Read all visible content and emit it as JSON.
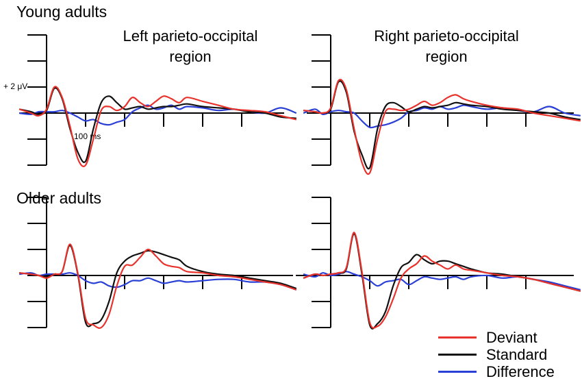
{
  "groups": {
    "young": "Young adults",
    "older": "Older adults"
  },
  "panel_titles": {
    "left": [
      "Left parieto-occipital",
      "region"
    ],
    "right": [
      "Right parieto-occipital",
      "region"
    ]
  },
  "scale": {
    "y_label": "+ 2 μV",
    "x_label": "100 ms"
  },
  "legend": [
    {
      "name": "Deviant",
      "color": "#e8322c"
    },
    {
      "name": "Standard",
      "color": "#111111"
    },
    {
      "name": "Difference",
      "color": "#2a3fd6"
    }
  ],
  "chart_data": [
    {
      "type": "line",
      "title": "Left parieto-occipital region",
      "group": "Young adults",
      "xlabel": "ms",
      "ylabel": "μV",
      "xlim": [
        -70,
        640
      ],
      "ylim": [
        -4,
        6
      ],
      "x": [
        -70,
        -40,
        -20,
        0,
        20,
        40,
        60,
        80,
        100,
        120,
        140,
        160,
        180,
        200,
        220,
        240,
        260,
        280,
        300,
        320,
        340,
        360,
        400,
        440,
        480,
        520,
        560,
        600,
        640
      ],
      "series": [
        {
          "name": "Deviant",
          "values": [
            0.3,
            0,
            -0.2,
            0.3,
            2,
            1.2,
            -1,
            -3.5,
            -4,
            -2,
            0.2,
            0.5,
            0.2,
            0.5,
            1.2,
            0.8,
            0.5,
            0.9,
            1.3,
            1.1,
            0.8,
            1.2,
            0.9,
            0.6,
            0.3,
            0.2,
            0.1,
            -0.2,
            -0.5
          ]
        },
        {
          "name": "Standard",
          "values": [
            0.3,
            0.1,
            -0.1,
            0.2,
            1.9,
            1.1,
            -1.2,
            -3,
            -3.7,
            -1.2,
            0.8,
            1.3,
            0.8,
            0.3,
            0.4,
            0.5,
            0.3,
            0.4,
            0.5,
            0.5,
            0.6,
            0.7,
            0.5,
            0.4,
            0.3,
            0.1,
            0,
            -0.3,
            -0.4
          ]
        },
        {
          "name": "Difference",
          "values": [
            0,
            -0.1,
            0.1,
            0.1,
            0.1,
            0.2,
            0,
            -0.3,
            -0.6,
            -0.5,
            -0.8,
            -0.9,
            -0.7,
            -0.5,
            0.1,
            0.4,
            0.6,
            0.3,
            0.4,
            0.6,
            0.3,
            0.5,
            0.4,
            0.2,
            0.3,
            0.1,
            0,
            0.4,
            0
          ]
        }
      ]
    },
    {
      "type": "line",
      "title": "Right parieto-occipital region",
      "group": "Young adults",
      "xlabel": "ms",
      "ylabel": "μV",
      "xlim": [
        -70,
        640
      ],
      "ylim": [
        -4,
        6
      ],
      "x": [
        -70,
        -40,
        -20,
        0,
        20,
        40,
        60,
        80,
        100,
        120,
        140,
        160,
        180,
        200,
        220,
        240,
        260,
        280,
        300,
        320,
        340,
        360,
        400,
        440,
        480,
        520,
        560,
        600,
        640
      ],
      "series": [
        {
          "name": "Deviant",
          "values": [
            0.2,
            0.1,
            0,
            0.4,
            2.5,
            1.8,
            -1.2,
            -3.8,
            -4.6,
            -2,
            0.1,
            0.3,
            0.2,
            0.3,
            0.6,
            0.9,
            0.6,
            0.8,
            1.2,
            1.4,
            1.1,
            0.9,
            0.6,
            0.4,
            0.3,
            0,
            -0.2,
            -0.4,
            -0.6
          ]
        },
        {
          "name": "Standard",
          "values": [
            0.2,
            0.1,
            0,
            0.3,
            2.4,
            1.6,
            -1.4,
            -3.2,
            -4.2,
            -1.2,
            0.5,
            0.8,
            0.5,
            0.1,
            0.3,
            0.5,
            0.4,
            0.5,
            0.6,
            0.8,
            0.7,
            0.6,
            0.5,
            0.3,
            0.2,
            0.1,
            0,
            -0.3,
            -0.5
          ]
        },
        {
          "name": "Difference",
          "values": [
            0,
            0.3,
            -0.1,
            0.1,
            0.2,
            0.1,
            0,
            -0.6,
            -1.1,
            -1,
            -0.9,
            -0.7,
            -0.4,
            0.1,
            0.2,
            0.4,
            0.3,
            0.5,
            0.3,
            0.4,
            0.6,
            0.5,
            0.3,
            0.4,
            0.2,
            0.1,
            0.5,
            0,
            -0.2
          ]
        }
      ]
    },
    {
      "type": "line",
      "title": "Left parieto-occipital region",
      "group": "Older adults",
      "xlabel": "ms",
      "ylabel": "μV",
      "xlim": [
        -70,
        640
      ],
      "ylim": [
        -4,
        6
      ],
      "x": [
        -70,
        -40,
        -20,
        0,
        20,
        40,
        60,
        80,
        100,
        120,
        140,
        160,
        180,
        200,
        220,
        240,
        260,
        280,
        300,
        320,
        340,
        360,
        400,
        440,
        480,
        520,
        560,
        600,
        640
      ],
      "series": [
        {
          "name": "Deviant",
          "values": [
            0.2,
            0.1,
            0,
            -0.2,
            0.1,
            0.3,
            2.4,
            0.2,
            -3.3,
            -3.8,
            -4,
            -3,
            -0.8,
            0.7,
            0.8,
            1.4,
            2,
            1.5,
            0.9,
            0.7,
            0.6,
            0.3,
            0.2,
            0,
            -0.1,
            -0.3,
            -0.5,
            -0.7,
            -1.1
          ]
        },
        {
          "name": "Standard",
          "values": [
            0.2,
            0.1,
            0,
            -0.1,
            0.1,
            0.3,
            2.3,
            0.1,
            -3.6,
            -3.7,
            -3.4,
            -2,
            0.2,
            1.1,
            1.5,
            1.7,
            1.9,
            1.8,
            1.6,
            1.4,
            1.2,
            0.7,
            0.3,
            0.1,
            0,
            -0.2,
            -0.4,
            -0.6,
            -1
          ]
        },
        {
          "name": "Difference",
          "values": [
            0.1,
            0.2,
            0,
            0.1,
            0.1,
            0.1,
            0.2,
            0,
            -0.4,
            -0.6,
            -0.5,
            -0.8,
            -0.9,
            -0.7,
            -0.4,
            -0.4,
            -0.2,
            -0.4,
            -0.6,
            -0.5,
            -0.4,
            -0.5,
            -0.4,
            -0.3,
            -0.3,
            -0.5,
            -0.5,
            -0.7,
            -1.1
          ]
        }
      ]
    },
    {
      "type": "line",
      "title": "Right parieto-occipital region",
      "group": "Older adults",
      "xlabel": "ms",
      "ylabel": "μV",
      "xlim": [
        -70,
        640
      ],
      "ylim": [
        -4,
        6
      ],
      "x": [
        -70,
        -40,
        -20,
        0,
        20,
        40,
        60,
        80,
        100,
        120,
        140,
        160,
        180,
        200,
        220,
        240,
        260,
        280,
        300,
        320,
        340,
        360,
        400,
        440,
        480,
        520,
        560,
        600,
        640
      ],
      "series": [
        {
          "name": "Deviant",
          "values": [
            -0.2,
            0.1,
            0,
            0.1,
            0.2,
            0.6,
            3.3,
            0.3,
            -3.6,
            -3.9,
            -3.2,
            -1.8,
            -0.2,
            0.5,
            0.9,
            1.5,
            1.1,
            0.8,
            0.5,
            0.8,
            0.5,
            0.4,
            0.2,
            0,
            -0.1,
            -0.3,
            -0.6,
            -0.9,
            -1.2
          ]
        },
        {
          "name": "Standard",
          "values": [
            -0.2,
            0.1,
            0,
            0.1,
            0.2,
            0.5,
            3.2,
            0.1,
            -3.8,
            -3.7,
            -2.8,
            -0.8,
            0.6,
            1,
            1.6,
            1.2,
            0.9,
            1.1,
            1.1,
            0.9,
            0.7,
            0.5,
            0.2,
            0.1,
            -0.1,
            -0.3,
            -0.6,
            -0.9,
            -1.2
          ]
        },
        {
          "name": "Difference",
          "values": [
            0.1,
            -0.1,
            0.2,
            0,
            0.1,
            0.3,
            0.1,
            -0.1,
            -0.4,
            -0.8,
            -0.5,
            -0.4,
            -0.3,
            -0.7,
            -0.4,
            -0.1,
            -0.2,
            -0.3,
            -0.2,
            -0.1,
            -0.3,
            -0.1,
            0,
            -0.2,
            -0.1,
            -0.3,
            -0.5,
            -0.8,
            -1.1
          ]
        }
      ]
    }
  ]
}
